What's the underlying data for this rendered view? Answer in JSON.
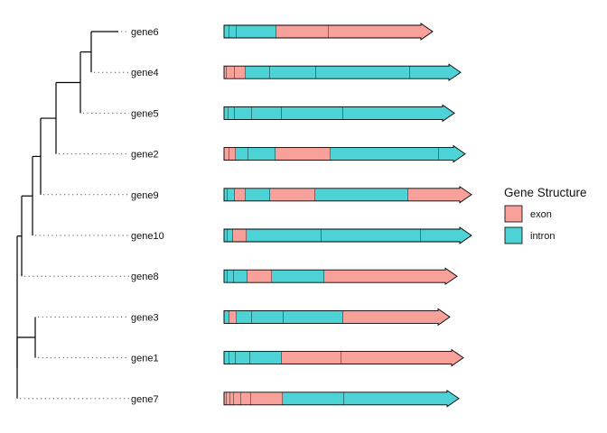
{
  "chart_data": {
    "type": "gene-structure",
    "tree": {
      "tips": [
        "gene6",
        "gene4",
        "gene5",
        "gene2",
        "gene9",
        "gene10",
        "gene8",
        "gene3",
        "gene1",
        "gene7"
      ],
      "branch_color": "#000000"
    },
    "legend": {
      "title": "Gene Structure",
      "items": [
        {
          "label": "exon",
          "color": "#F8A19A"
        },
        {
          "label": "intron",
          "color": "#4DD2D6"
        }
      ]
    },
    "genes": [
      {
        "name": "gene6",
        "length": 231,
        "segments": [
          {
            "end": 6,
            "type": "intron"
          },
          {
            "end": 14,
            "type": "intron"
          },
          {
            "end": 58,
            "type": "intron"
          },
          {
            "end": 116,
            "type": "exon"
          },
          {
            "end": 231,
            "type": "exon"
          }
        ]
      },
      {
        "name": "gene4",
        "length": 262,
        "segments": [
          {
            "end": 3,
            "type": "exon"
          },
          {
            "end": 12,
            "type": "exon"
          },
          {
            "end": 24,
            "type": "exon"
          },
          {
            "end": 51,
            "type": "intron"
          },
          {
            "end": 102,
            "type": "intron"
          },
          {
            "end": 206,
            "type": "intron"
          },
          {
            "end": 262,
            "type": "intron"
          }
        ]
      },
      {
        "name": "gene5",
        "length": 255,
        "segments": [
          {
            "end": 5,
            "type": "intron"
          },
          {
            "end": 12,
            "type": "intron"
          },
          {
            "end": 31,
            "type": "intron"
          },
          {
            "end": 64,
            "type": "intron"
          },
          {
            "end": 132,
            "type": "intron"
          },
          {
            "end": 255,
            "type": "intron"
          }
        ]
      },
      {
        "name": "gene2",
        "length": 267,
        "segments": [
          {
            "end": 6,
            "type": "exon"
          },
          {
            "end": 13,
            "type": "exon"
          },
          {
            "end": 27,
            "type": "intron"
          },
          {
            "end": 57,
            "type": "intron"
          },
          {
            "end": 118,
            "type": "exon"
          },
          {
            "end": 238,
            "type": "intron"
          },
          {
            "end": 267,
            "type": "intron"
          }
        ]
      },
      {
        "name": "gene9",
        "length": 274,
        "segments": [
          {
            "end": 4,
            "type": "intron"
          },
          {
            "end": 12,
            "type": "intron"
          },
          {
            "end": 24,
            "type": "exon"
          },
          {
            "end": 51,
            "type": "intron"
          },
          {
            "end": 101,
            "type": "exon"
          },
          {
            "end": 204,
            "type": "intron"
          },
          {
            "end": 274,
            "type": "exon"
          }
        ]
      },
      {
        "name": "gene10",
        "length": 274,
        "segments": [
          {
            "end": 4,
            "type": "intron"
          },
          {
            "end": 10,
            "type": "intron"
          },
          {
            "end": 25,
            "type": "exon"
          },
          {
            "end": 108,
            "type": "intron"
          },
          {
            "end": 218,
            "type": "intron"
          },
          {
            "end": 274,
            "type": "intron"
          }
        ]
      },
      {
        "name": "gene8",
        "length": 258,
        "segments": [
          {
            "end": 4,
            "type": "intron"
          },
          {
            "end": 11,
            "type": "intron"
          },
          {
            "end": 26,
            "type": "intron"
          },
          {
            "end": 53,
            "type": "exon"
          },
          {
            "end": 111,
            "type": "intron"
          },
          {
            "end": 253,
            "type": "exon"
          },
          {
            "end": 258,
            "type": "exon"
          }
        ]
      },
      {
        "name": "gene3",
        "length": 250,
        "segments": [
          {
            "end": 6,
            "type": "intron"
          },
          {
            "end": 14,
            "type": "exon"
          },
          {
            "end": 31,
            "type": "intron"
          },
          {
            "end": 66,
            "type": "intron"
          },
          {
            "end": 132,
            "type": "intron"
          },
          {
            "end": 250,
            "type": "exon"
          }
        ]
      },
      {
        "name": "gene1",
        "length": 265,
        "segments": [
          {
            "end": 6,
            "type": "intron"
          },
          {
            "end": 13,
            "type": "intron"
          },
          {
            "end": 29,
            "type": "intron"
          },
          {
            "end": 64,
            "type": "intron"
          },
          {
            "end": 130,
            "type": "exon"
          },
          {
            "end": 265,
            "type": "exon"
          }
        ]
      },
      {
        "name": "gene7",
        "length": 260,
        "segments": [
          {
            "end": 3,
            "type": "exon"
          },
          {
            "end": 7,
            "type": "exon"
          },
          {
            "end": 11,
            "type": "exon"
          },
          {
            "end": 19,
            "type": "exon"
          },
          {
            "end": 30,
            "type": "exon"
          },
          {
            "end": 65,
            "type": "exon"
          },
          {
            "end": 133,
            "type": "intron"
          },
          {
            "end": 260,
            "type": "intron"
          }
        ]
      }
    ]
  }
}
